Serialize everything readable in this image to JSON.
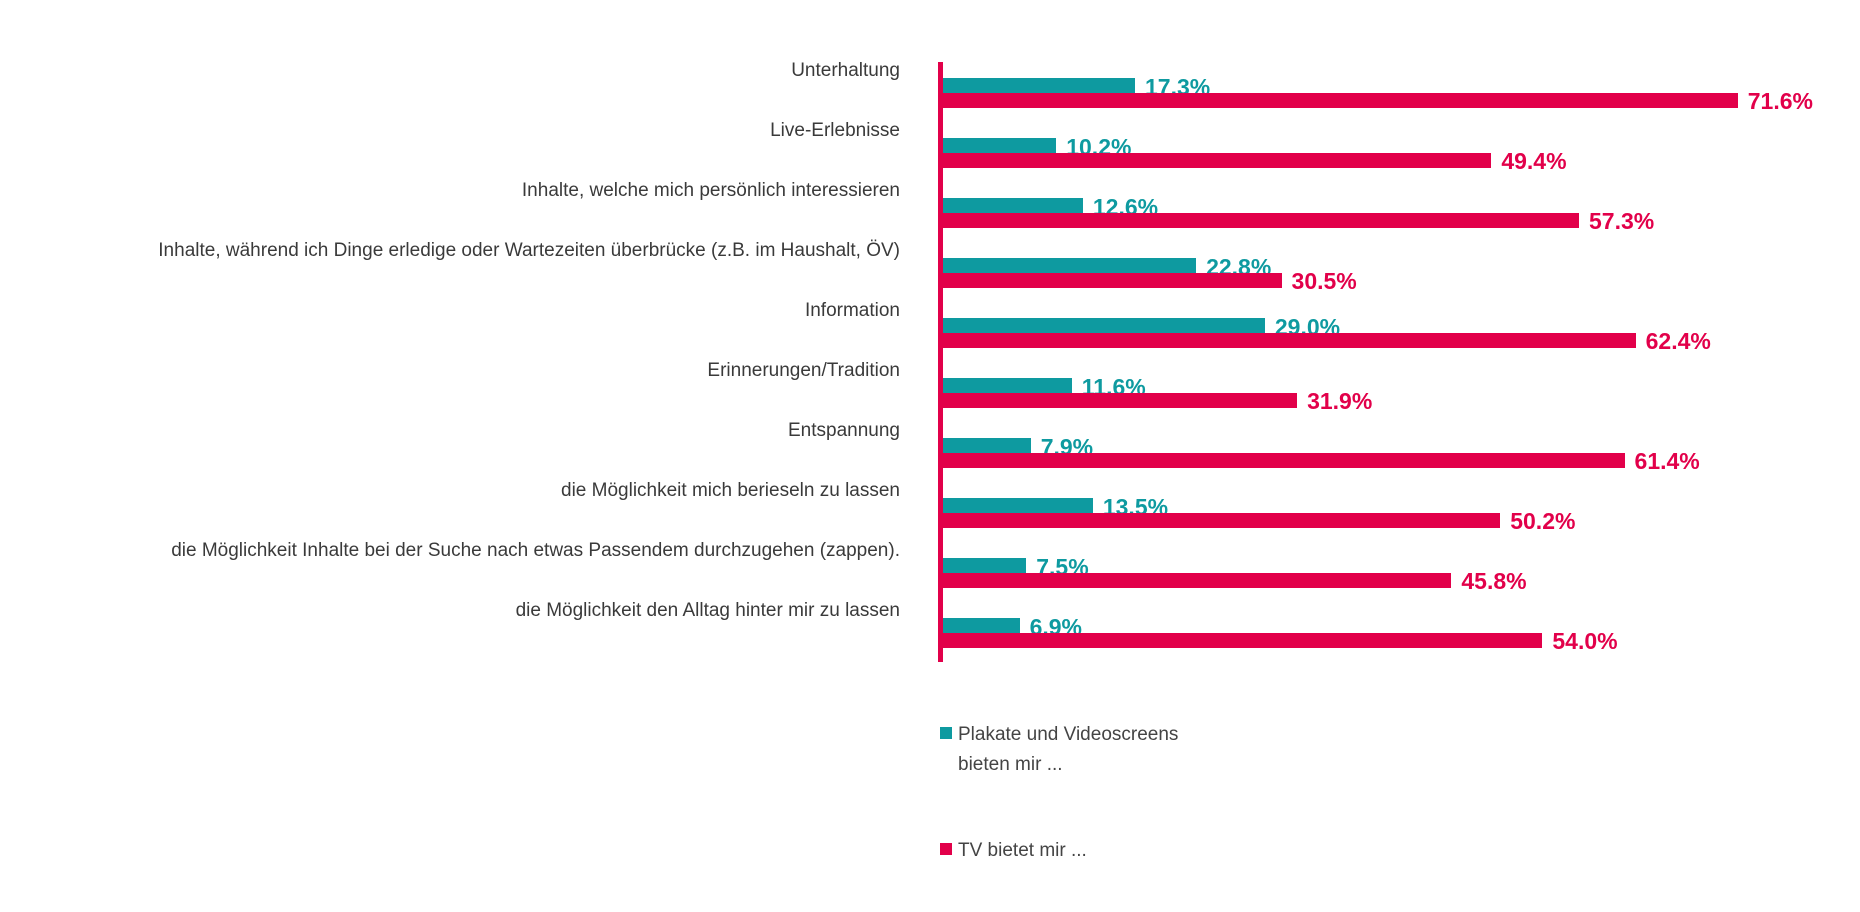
{
  "chart_data": {
    "type": "bar",
    "orientation": "horizontal",
    "categories": [
      "Unterhaltung",
      "Live-Erlebnisse",
      "Inhalte, welche mich persönlich interessieren",
      "Inhalte, während ich Dinge erledige oder Wartezeiten überbrücke (z.B. im Haushalt, ÖV)",
      "Information",
      "Erinnerungen/Tradition",
      "Entspannung",
      "die Möglichkeit mich berieseln zu lassen",
      "die Möglichkeit Inhalte bei der Suche nach etwas Passendem durchzugehen (zappen).",
      "die Möglichkeit den Alltag hinter mir zu lassen"
    ],
    "series": [
      {
        "name": "Plakate und Videoscreens bieten mir ...",
        "color": "#0e9aa0",
        "values": [
          17.3,
          10.2,
          12.6,
          22.8,
          29.0,
          11.6,
          7.9,
          13.5,
          7.5,
          6.9
        ],
        "labels": [
          "17.3%",
          "10.2%",
          "12.6%",
          "22.8%",
          "29.0%",
          "11.6%",
          "7.9%",
          "13.5%",
          "7.5%",
          "6.9%"
        ]
      },
      {
        "name": "TV bietet mir ...",
        "color": "#e2004a",
        "values": [
          71.6,
          49.4,
          57.3,
          30.5,
          62.4,
          31.9,
          61.4,
          50.2,
          45.8,
          54.0
        ],
        "labels": [
          "71.6%",
          "49.4%",
          "57.3%",
          "30.5%",
          "62.4%",
          "31.9%",
          "61.4%",
          "50.2%",
          "45.8%",
          "54.0%"
        ]
      }
    ],
    "xlim": [
      0,
      100
    ],
    "grid": false,
    "legend_position": "bottom"
  }
}
